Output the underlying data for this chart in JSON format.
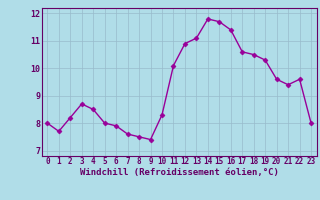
{
  "x": [
    0,
    1,
    2,
    3,
    4,
    5,
    6,
    7,
    8,
    9,
    10,
    11,
    12,
    13,
    14,
    15,
    16,
    17,
    18,
    19,
    20,
    21,
    22,
    23
  ],
  "y": [
    8.0,
    7.7,
    8.2,
    8.7,
    8.5,
    8.0,
    7.9,
    7.6,
    7.5,
    7.4,
    8.3,
    10.1,
    10.9,
    11.1,
    11.8,
    11.7,
    11.4,
    10.6,
    10.5,
    10.3,
    9.6,
    9.4,
    9.6,
    8.0
  ],
  "line_color": "#990099",
  "marker": "D",
  "marker_size": 2.5,
  "bg_color": "#b0dde8",
  "grid_color": "#99bbcc",
  "xlabel": "Windchill (Refroidissement éolien,°C)",
  "xlim": [
    -0.5,
    23.5
  ],
  "ylim": [
    6.8,
    12.2
  ],
  "yticks": [
    7,
    8,
    9,
    10,
    11,
    12
  ],
  "xticks": [
    0,
    1,
    2,
    3,
    4,
    5,
    6,
    7,
    8,
    9,
    10,
    11,
    12,
    13,
    14,
    15,
    16,
    17,
    18,
    19,
    20,
    21,
    22,
    23
  ],
  "label_color": "#660066",
  "tick_color": "#660066",
  "axis_line_color": "#660066"
}
